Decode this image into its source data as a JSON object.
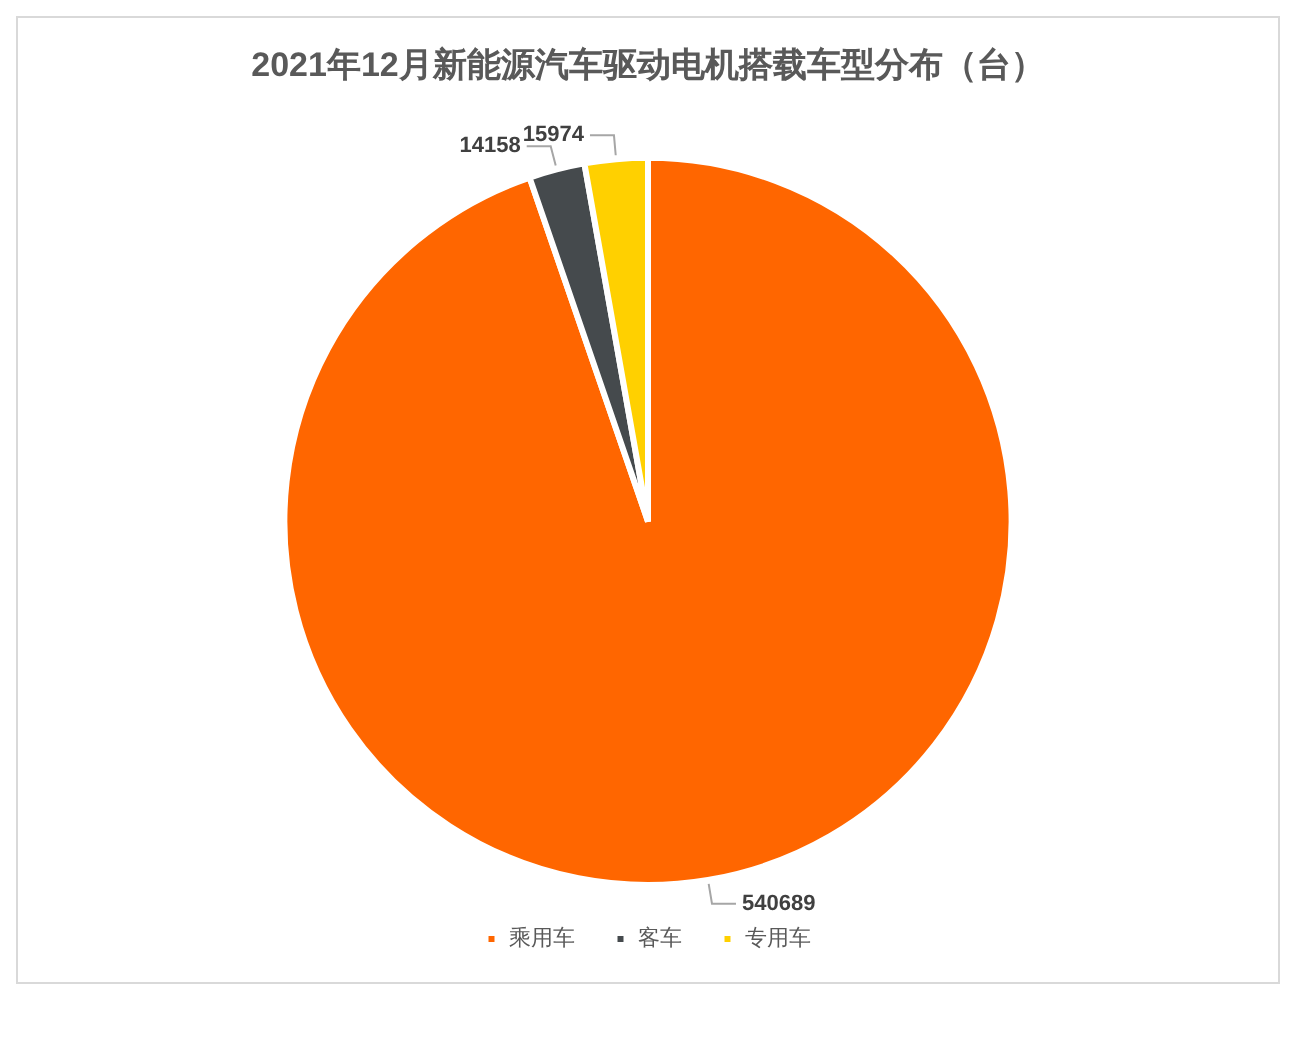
{
  "chart_data": {
    "type": "pie",
    "title": "2021年12月新能源汽车驱动电机搭载车型分布（台）",
    "categories": [
      "乘用车",
      "客车",
      "专用车"
    ],
    "values": [
      540689,
      14158,
      15974
    ],
    "colors": [
      "#ff6600",
      "#454a4d",
      "#ffd000"
    ],
    "data_labels": true,
    "legend": "bottom"
  }
}
